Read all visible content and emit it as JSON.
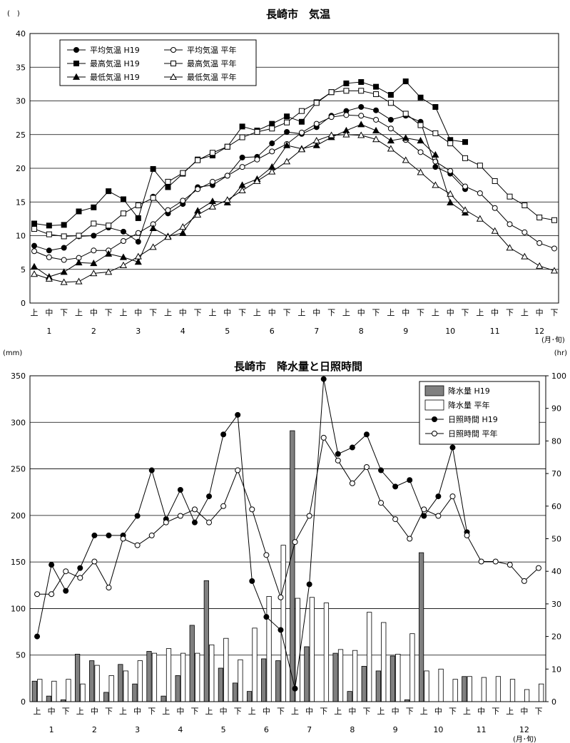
{
  "dekads": [
    "上",
    "中",
    "下",
    "上",
    "中",
    "下",
    "上",
    "中",
    "下",
    "上",
    "中",
    "下",
    "上",
    "中",
    "下",
    "上",
    "中",
    "下",
    "上",
    "中",
    "下",
    "上",
    "中",
    "下",
    "上",
    "中",
    "下",
    "上",
    "中",
    "下",
    "上",
    "中",
    "下",
    "上",
    "中",
    "下"
  ],
  "months": [
    "1",
    "2",
    "3",
    "4",
    "5",
    "6",
    "7",
    "8",
    "9",
    "10",
    "11",
    "12"
  ],
  "x_unit": "(月･旬)",
  "chart_data": [
    {
      "type": "line",
      "title": "長崎市　気温",
      "y_unit": "(　)",
      "ylim": [
        0,
        40
      ],
      "yticks": [
        0,
        5,
        10,
        15,
        20,
        25,
        30,
        35,
        40
      ],
      "legend_position": "top-left",
      "series": [
        {
          "name": "平均気温 H19",
          "marker": "filled-circle",
          "values": [
            8.5,
            7.8,
            8.2,
            9.9,
            10,
            11.2,
            10.6,
            9.1,
            15.8,
            13.3,
            14.7,
            17.2,
            17.5,
            18.9,
            21.6,
            21.7,
            23.7,
            25.4,
            25.1,
            26.1,
            27.8,
            28.5,
            29.1,
            28.6,
            27.2,
            27.8,
            26.9,
            20.2,
            19.2,
            16.9,
            null,
            null,
            null,
            null,
            null,
            null
          ]
        },
        {
          "name": "平均気温 平年",
          "marker": "open-circle",
          "values": [
            7.7,
            6.8,
            6.4,
            6.7,
            7.8,
            7.8,
            9.2,
            10.4,
            11.7,
            13.8,
            15.2,
            16.9,
            18.0,
            18.9,
            20.2,
            21.3,
            22.5,
            23.6,
            25.3,
            26.6,
            27.6,
            27.9,
            27.8,
            27.2,
            25.9,
            24.2,
            22.4,
            21.0,
            19.6,
            17.3,
            16.3,
            14.1,
            11.7,
            10.5,
            8.9,
            8.1
          ]
        },
        {
          "name": "最高気温 H19",
          "marker": "filled-square",
          "values": [
            11.8,
            11.5,
            11.6,
            13.6,
            14.2,
            16.6,
            15.4,
            12.6,
            19.9,
            17.2,
            19.2,
            21.3,
            21.9,
            23.2,
            26.2,
            25.6,
            26.6,
            27.7,
            26.9,
            29.8,
            31.3,
            32.6,
            32.8,
            32.1,
            30.9,
            32.9,
            30.5,
            29.1,
            24.2,
            23.9,
            null,
            null,
            null,
            null,
            null,
            null
          ]
        },
        {
          "name": "最高気温 平年",
          "marker": "open-square",
          "values": [
            11.0,
            10.2,
            9.9,
            10.0,
            11.8,
            11.5,
            13.3,
            14.5,
            15.6,
            18.0,
            19.3,
            21.2,
            22.3,
            23.2,
            24.6,
            25.4,
            25.9,
            26.8,
            28.5,
            29.7,
            31.3,
            31.5,
            31.5,
            31.0,
            29.7,
            28.1,
            26.4,
            25.2,
            23.7,
            21.5,
            20.4,
            18.1,
            15.8,
            14.5,
            12.7,
            12.3
          ]
        },
        {
          "name": "最低気温 H19",
          "marker": "filled-triangle",
          "values": [
            5.4,
            3.9,
            4.6,
            6.0,
            5.9,
            7.3,
            6.8,
            6.1,
            11.1,
            9.9,
            10.4,
            13.7,
            15.1,
            14.9,
            17.5,
            18.4,
            20.2,
            23.4,
            22.9,
            23.4,
            24.6,
            25.6,
            26.5,
            25.6,
            24.1,
            24.5,
            24.1,
            22.0,
            14.9,
            13.4,
            null,
            null,
            null,
            null,
            null,
            null
          ]
        },
        {
          "name": "最低気温 平年",
          "marker": "open-triangle",
          "values": [
            4.3,
            3.6,
            3.1,
            3.2,
            4.4,
            4.6,
            5.6,
            6.9,
            8.3,
            9.8,
            11.3,
            13.1,
            14.3,
            15.3,
            16.7,
            18.1,
            19.5,
            21.0,
            22.8,
            24.1,
            24.9,
            25.0,
            24.9,
            24.3,
            22.9,
            21.2,
            19.4,
            17.5,
            16.2,
            13.8,
            12.5,
            10.7,
            8.2,
            6.9,
            5.5,
            4.8
          ]
        }
      ]
    },
    {
      "type": "bar",
      "title": "長崎市　降水量と日照時間",
      "y_unit_left": "(mm)",
      "y_unit_right": "(hr)",
      "ylim_left": [
        0,
        350
      ],
      "ylim_right": [
        0,
        100
      ],
      "yticks_left": [
        0,
        50,
        100,
        150,
        200,
        250,
        300,
        350
      ],
      "yticks_right": [
        0,
        10,
        20,
        30,
        40,
        50,
        60,
        70,
        80,
        90,
        100
      ],
      "legend_position": "top-right",
      "series": [
        {
          "name": "降水量 H19",
          "kind": "bar",
          "axis": "left",
          "color": "#808080",
          "values": [
            22,
            6,
            2,
            51,
            44,
            10,
            40,
            19,
            54,
            6,
            28,
            82,
            130,
            36,
            20,
            11,
            46,
            44,
            291,
            59,
            0,
            52,
            11,
            38,
            33,
            49,
            2,
            160,
            0,
            0,
            27,
            0,
            0,
            0,
            0,
            0
          ]
        },
        {
          "name": "降水量 平年",
          "kind": "bar",
          "axis": "left",
          "color": "#ffffff",
          "values": [
            24,
            22,
            24,
            19,
            39,
            28,
            33,
            44,
            52,
            57,
            52,
            52,
            61,
            68,
            45,
            79,
            113,
            168,
            111,
            112,
            106,
            56,
            55,
            96,
            85,
            51,
            73,
            33,
            35,
            24,
            27,
            26,
            27,
            24,
            13,
            19
          ]
        },
        {
          "name": "日照時間 H19",
          "kind": "line",
          "axis": "right",
          "marker": "filled-circle",
          "values": [
            20,
            42,
            34,
            41,
            51,
            51,
            51,
            57,
            71,
            56,
            65,
            55,
            63,
            82,
            88,
            37,
            26,
            22,
            4,
            36,
            99,
            76,
            78,
            82,
            71,
            66,
            68,
            57,
            63,
            78,
            52,
            null,
            null,
            null,
            null,
            null
          ]
        },
        {
          "name": "日照時間 平年",
          "kind": "line",
          "axis": "right",
          "marker": "open-circle",
          "values": [
            33,
            33,
            40,
            38,
            43,
            35,
            50,
            48,
            51,
            55,
            57,
            59,
            55,
            60,
            71,
            59,
            45,
            32,
            49,
            57,
            81,
            74,
            67,
            72,
            61,
            56,
            50,
            59,
            57,
            63,
            51,
            43,
            43,
            42,
            37,
            41
          ]
        }
      ]
    }
  ]
}
